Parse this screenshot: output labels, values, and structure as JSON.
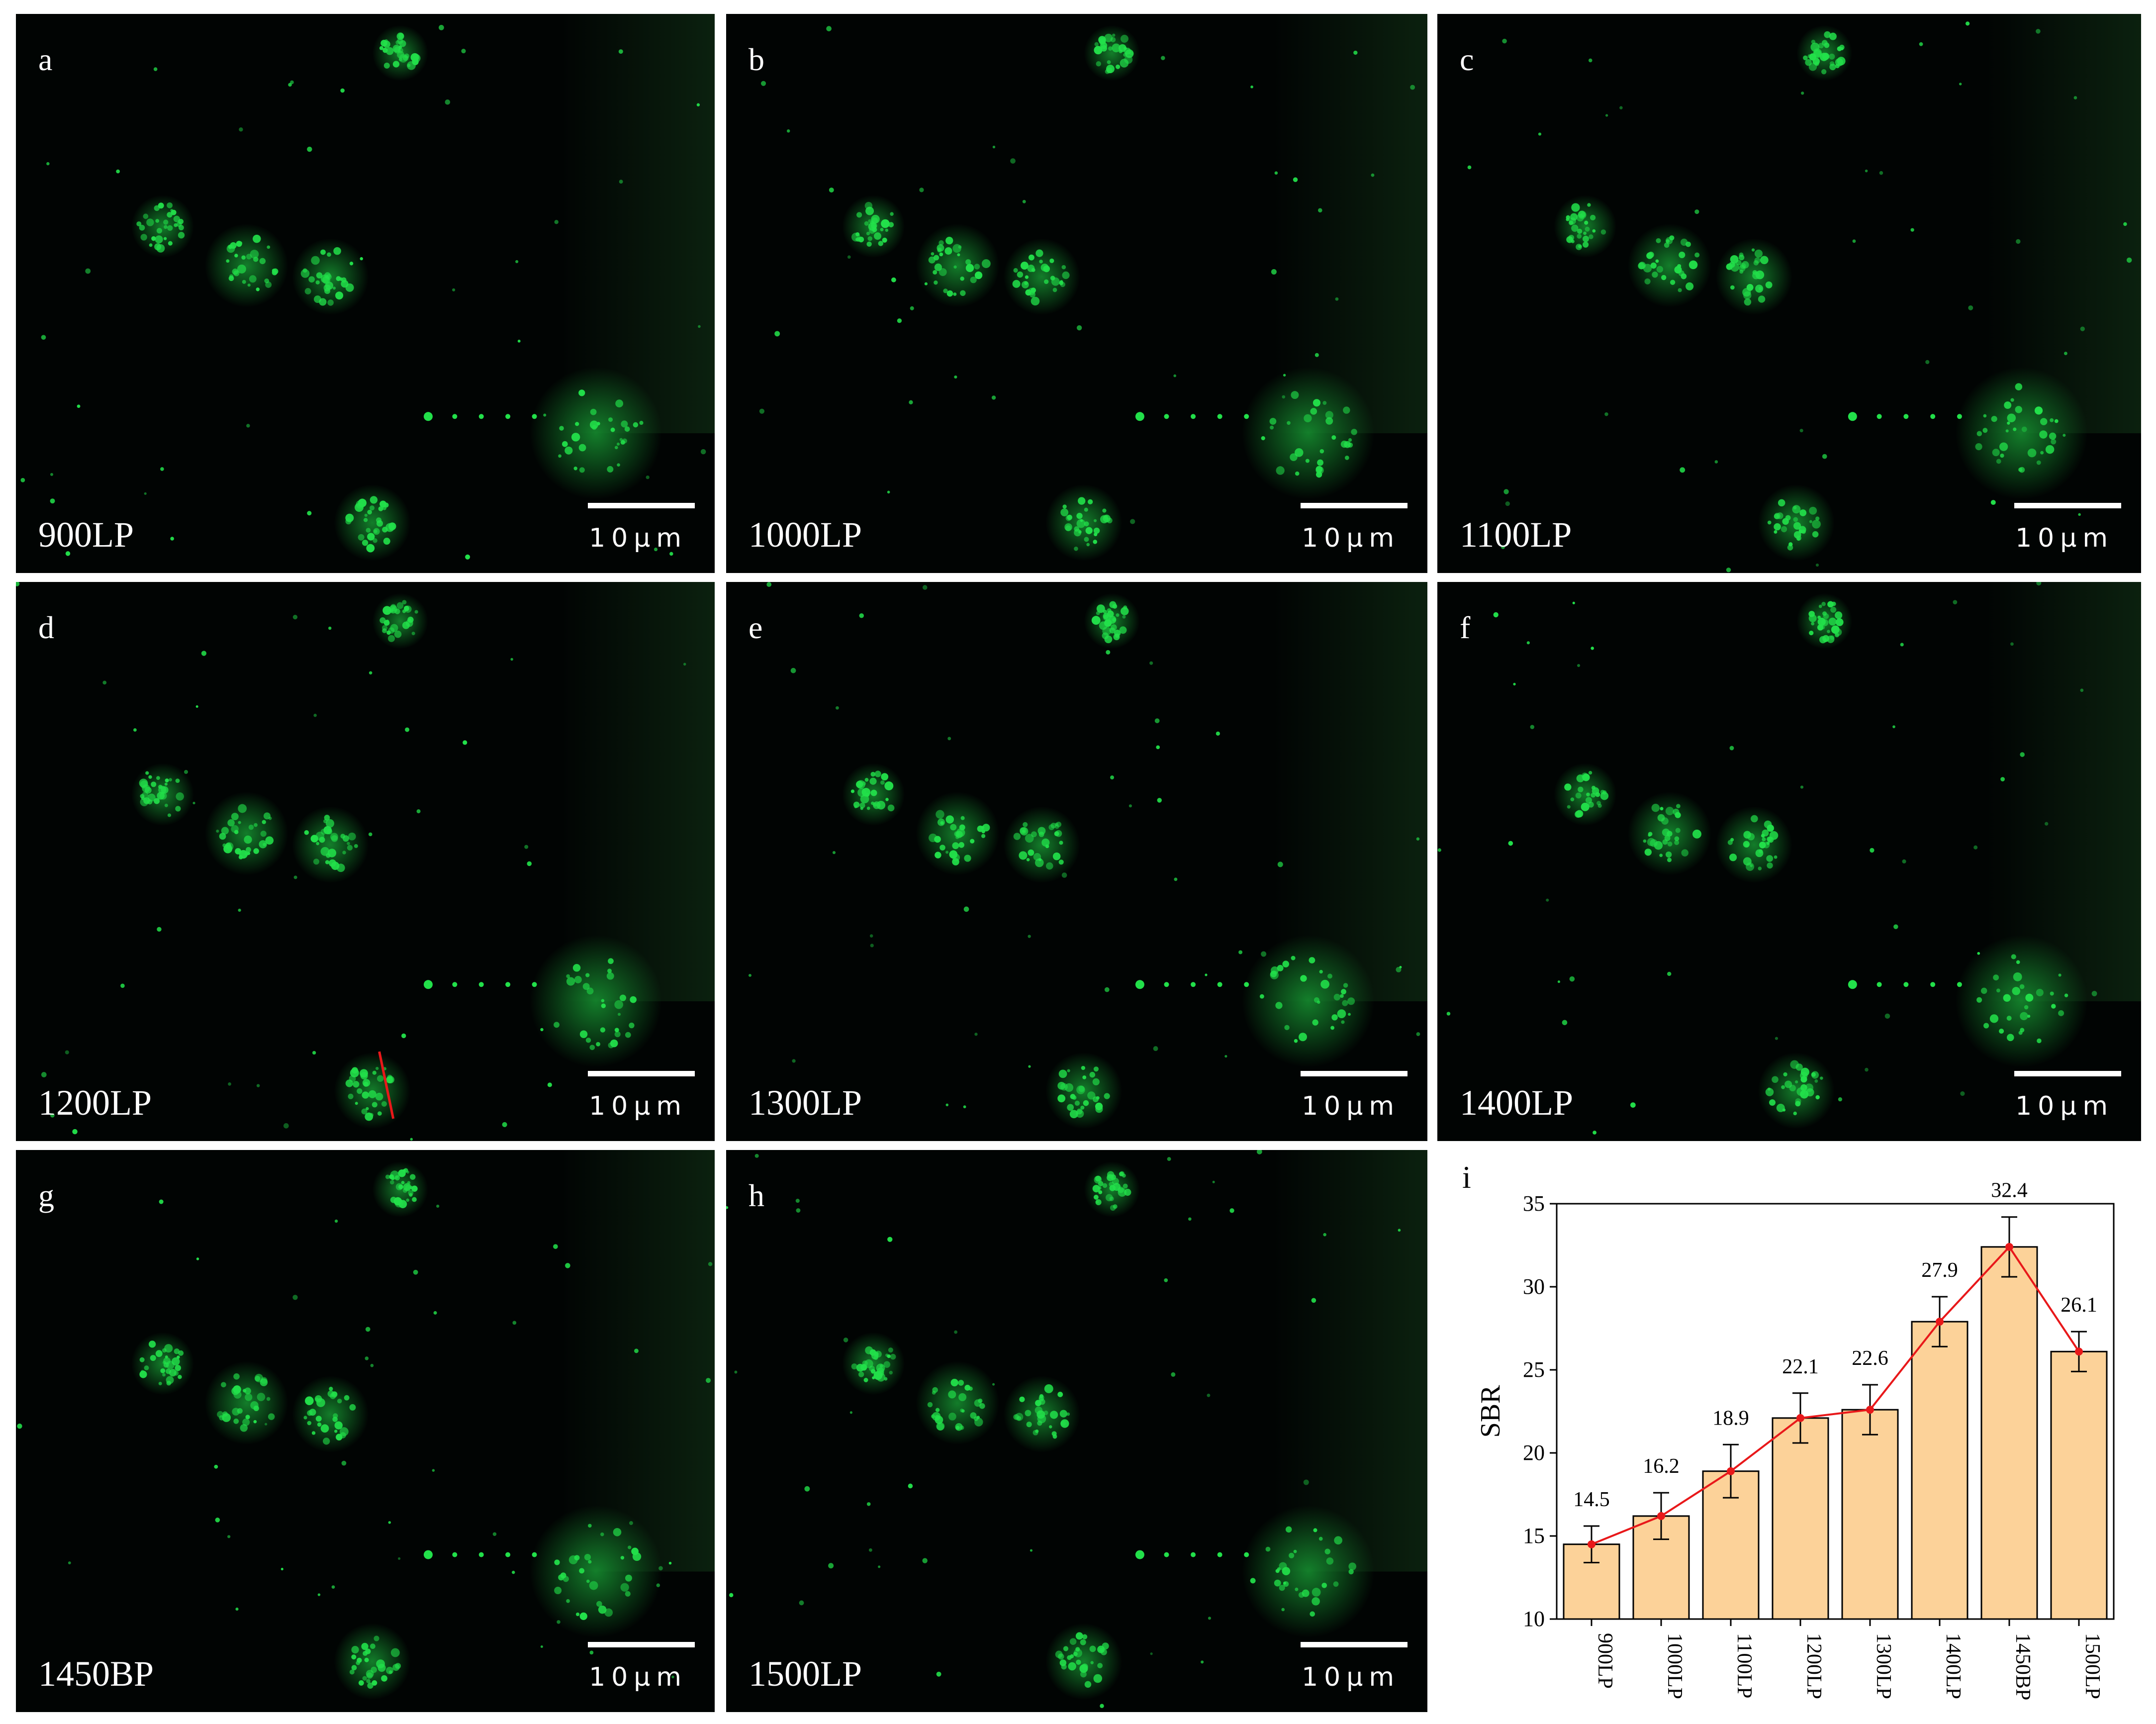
{
  "scale_label": "10μm",
  "colors": {
    "cell_green": "#22e04a",
    "bar_fill": "#fcd299",
    "line_red": "#e8181a",
    "background": "#010403"
  },
  "panels": [
    {
      "label": "a",
      "filter": "900LP"
    },
    {
      "label": "b",
      "filter": "1000LP"
    },
    {
      "label": "c",
      "filter": "1100LP"
    },
    {
      "label": "d",
      "filter": "1200LP"
    },
    {
      "label": "e",
      "filter": "1300LP"
    },
    {
      "label": "f",
      "filter": "1400LP"
    },
    {
      "label": "g",
      "filter": "1450BP"
    },
    {
      "label": "h",
      "filter": "1500LP"
    }
  ],
  "chart_label": "i",
  "chart_data": {
    "type": "bar",
    "categories": [
      "900LP",
      "1000LP",
      "1100LP",
      "1200LP",
      "1300LP",
      "1400LP",
      "1450BP",
      "1500LP"
    ],
    "values": [
      14.5,
      16.2,
      18.9,
      22.1,
      22.6,
      27.9,
      32.4,
      26.1
    ],
    "errors": [
      1.1,
      1.4,
      1.6,
      1.5,
      1.5,
      1.5,
      1.8,
      1.2
    ],
    "value_labels": [
      "14.5",
      "16.2",
      "18.9",
      "22.1",
      "22.6",
      "27.9",
      "32.4",
      "26.1"
    ],
    "ylabel": "SBR",
    "xlabel": "",
    "ylim": [
      10,
      35
    ],
    "yticks": [
      10,
      15,
      20,
      25,
      30,
      35
    ],
    "overlay_line": true,
    "grid": false
  }
}
